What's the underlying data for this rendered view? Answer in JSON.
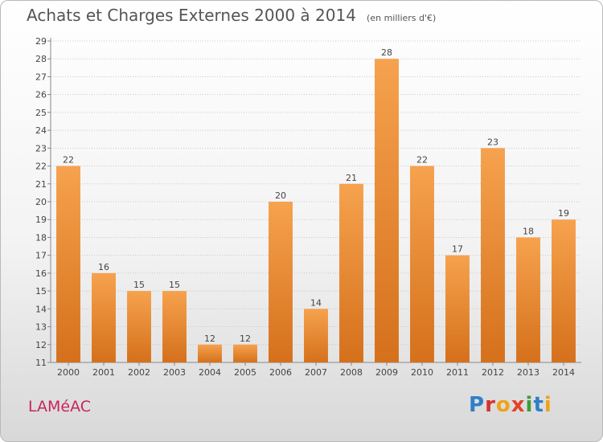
{
  "header": {
    "title": "Achats et Charges Externes 2000 à 2014",
    "subtitle": "(en milliers d'€)"
  },
  "commune": "LAMéAC",
  "logo": {
    "text": "Proxiti",
    "letter_colors": [
      "#2f7fc8",
      "#d8322d",
      "#f0a21c",
      "#e2432a",
      "#3e9b3b",
      "#2f7fc8",
      "#f0a21c"
    ]
  },
  "colors": {
    "bar_top": "#f6a24e",
    "bar_bottom": "#d5701b",
    "grid": "#c8c8c8",
    "axis": "#888888"
  },
  "chart_data": {
    "type": "bar",
    "title": "Achats et Charges Externes 2000 à 2014",
    "xlabel": "",
    "ylabel": "",
    "categories": [
      "2000",
      "2001",
      "2002",
      "2003",
      "2004",
      "2005",
      "2006",
      "2007",
      "2008",
      "2009",
      "2010",
      "2011",
      "2012",
      "2013",
      "2014"
    ],
    "values": [
      22,
      16,
      15,
      15,
      12,
      12,
      20,
      14,
      21,
      28,
      22,
      17,
      23,
      18,
      19
    ],
    "ylim": [
      11,
      29
    ],
    "yticks": [
      11,
      12,
      13,
      14,
      15,
      16,
      17,
      18,
      19,
      20,
      21,
      22,
      23,
      24,
      25,
      26,
      27,
      28,
      29
    ],
    "grid": true,
    "legend": "none"
  }
}
